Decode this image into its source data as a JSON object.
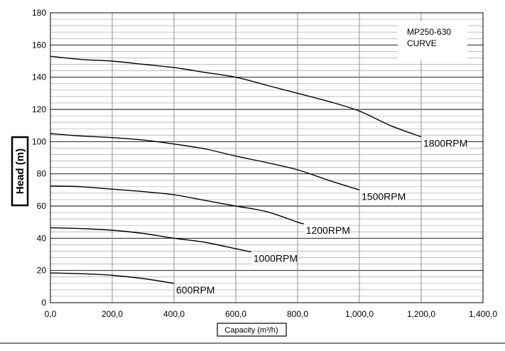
{
  "chart_data": {
    "type": "line",
    "title": "",
    "note_lines": [
      "MP250-630",
      "CURVE"
    ],
    "xlabel": "Capacity (m³/h)",
    "ylabel": "Head (m)",
    "xlim": [
      0,
      1400
    ],
    "ylim": [
      0,
      180
    ],
    "x_ticks": [
      0,
      200,
      400,
      600,
      800,
      1000,
      1200,
      1400
    ],
    "x_tick_labels": [
      "0,0",
      "200,0",
      "400,0",
      "600,0",
      "800,0",
      "1,000,0",
      "1,200,0",
      "1,400,0"
    ],
    "y_ticks": [
      0,
      20,
      40,
      60,
      80,
      100,
      120,
      140,
      160,
      180
    ],
    "y_tick_labels": [
      "0",
      "20",
      "40",
      "60",
      "80",
      "100",
      "120",
      "140",
      "160",
      "180"
    ],
    "grid": true,
    "legend": "none",
    "series": [
      {
        "name": "1800RPM",
        "x": [
          0,
          100,
          200,
          300,
          400,
          500,
          600,
          700,
          800,
          900,
          1000,
          1100,
          1200
        ],
        "y": [
          153,
          151,
          150,
          148,
          146,
          143,
          140,
          135,
          130,
          125,
          119,
          110,
          103
        ]
      },
      {
        "name": "1500RPM",
        "x": [
          0,
          100,
          200,
          300,
          400,
          500,
          600,
          700,
          800,
          900,
          1000
        ],
        "y": [
          105,
          103.5,
          102.5,
          101,
          98.5,
          95.5,
          91,
          87,
          82.5,
          76,
          70
        ]
      },
      {
        "name": "1200RPM",
        "x": [
          0,
          100,
          200,
          300,
          400,
          500,
          600,
          700,
          800,
          820
        ],
        "y": [
          72.5,
          72,
          70.5,
          69,
          67,
          63.5,
          60,
          56.5,
          50,
          49
        ]
      },
      {
        "name": "1000RPM",
        "x": [
          0,
          100,
          200,
          300,
          400,
          500,
          600,
          650
        ],
        "y": [
          46.5,
          46,
          45,
          43,
          40,
          37.5,
          33.5,
          31.5
        ]
      },
      {
        "name": "600RPM",
        "x": [
          0,
          100,
          200,
          300,
          400
        ],
        "y": [
          18.5,
          18,
          17,
          15,
          12
        ]
      }
    ]
  }
}
